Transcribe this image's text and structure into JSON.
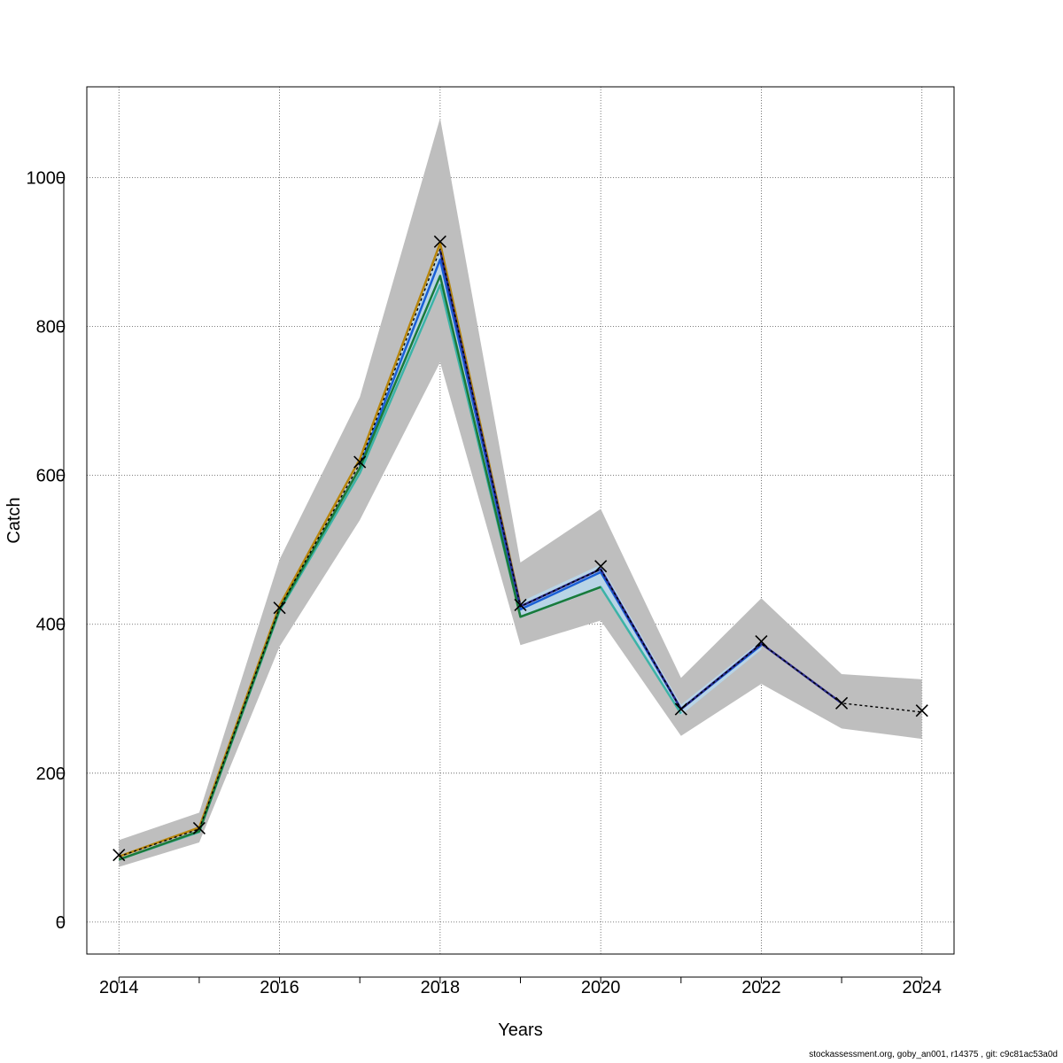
{
  "chart_data": {
    "type": "line",
    "xlabel": "Years",
    "ylabel": "Catch",
    "xlim": [
      2013.6,
      2024.4
    ],
    "ylim": [
      -43,
      1122
    ],
    "x_ticks": [
      2014,
      2016,
      2018,
      2020,
      2022,
      2024
    ],
    "x_tick_labels": [
      "2014",
      "2016",
      "2018",
      "2020",
      "2022",
      "2024"
    ],
    "y_ticks": [
      0,
      200,
      400,
      600,
      800,
      1000
    ],
    "y_tick_labels": [
      "0",
      "200",
      "400",
      "600",
      "800",
      "1000"
    ],
    "x_minor_ticks": [
      2015,
      2017,
      2019,
      2021,
      2023
    ],
    "grid": true,
    "x": [
      2014,
      2015,
      2016,
      2017,
      2018,
      2019,
      2020,
      2021,
      2022,
      2023,
      2024
    ],
    "band": {
      "x": [
        2014,
        2015,
        2016,
        2017,
        2018,
        2019,
        2020,
        2021,
        2022,
        2023,
        2024
      ],
      "upper": [
        110,
        147,
        487,
        705,
        1080,
        483,
        555,
        328,
        435,
        333,
        326
      ],
      "lower": [
        74,
        107,
        370,
        540,
        752,
        372,
        405,
        250,
        320,
        260,
        246
      ],
      "color": "#bebebe"
    },
    "estimate_band": {
      "x": [
        2017,
        2018,
        2019,
        2020,
        2021,
        2022
      ],
      "upper": [
        622,
        905,
        430,
        480,
        292,
        378
      ],
      "lower": [
        600,
        852,
        408,
        448,
        278,
        366
      ],
      "color": "#b8d4e6"
    },
    "series": [
      {
        "color": "#b8860b",
        "width": 2.5,
        "dash": "",
        "x": [
          2014,
          2015,
          2016,
          2017,
          2018,
          2019
        ],
        "values": [
          88,
          127,
          425,
          622,
          912,
          426
        ]
      },
      {
        "color": "#3cb3a6",
        "width": 2.5,
        "dash": "",
        "x": [
          2014,
          2015,
          2016,
          2017,
          2018,
          2019,
          2020,
          2021
        ],
        "values": [
          84,
          121,
          418,
          603,
          856,
          410,
          450,
          280
        ]
      },
      {
        "color": "#1a5fd6",
        "width": 2.5,
        "dash": "",
        "x": [
          2017,
          2018,
          2019,
          2020,
          2021,
          2022
        ],
        "values": [
          612,
          890,
          420,
          470,
          286,
          372
        ]
      },
      {
        "color": "#2b2b8f",
        "width": 2.5,
        "dash": "",
        "x": [
          2018,
          2019,
          2020,
          2021,
          2022,
          2023
        ],
        "values": [
          902,
          424,
          474,
          286,
          374,
          294
        ]
      },
      {
        "color": "#1a7a3a",
        "width": 2.5,
        "dash": "",
        "x": [
          2014,
          2015,
          2016,
          2017,
          2018,
          2019,
          2020
        ],
        "values": [
          84,
          122,
          420,
          610,
          868,
          410,
          450
        ]
      },
      {
        "color": "#000000",
        "width": 1.4,
        "dash": "3,3",
        "x": [
          2014,
          2015,
          2016,
          2017,
          2018,
          2019,
          2020,
          2021,
          2022,
          2023,
          2024
        ],
        "values": [
          88,
          125,
          422,
          616,
          904,
          424,
          474,
          286,
          374,
          294,
          282
        ]
      }
    ],
    "observed": {
      "marker": "x",
      "x": [
        2014,
        2015,
        2016,
        2017,
        2018,
        2019,
        2020,
        2021,
        2022,
        2023,
        2024
      ],
      "values": [
        90,
        126,
        422,
        618,
        914,
        426,
        478,
        286,
        377,
        294,
        284
      ]
    }
  },
  "footer": "stockassessment.org, goby_an001, r14375 , git: c9c81ac53a0d"
}
